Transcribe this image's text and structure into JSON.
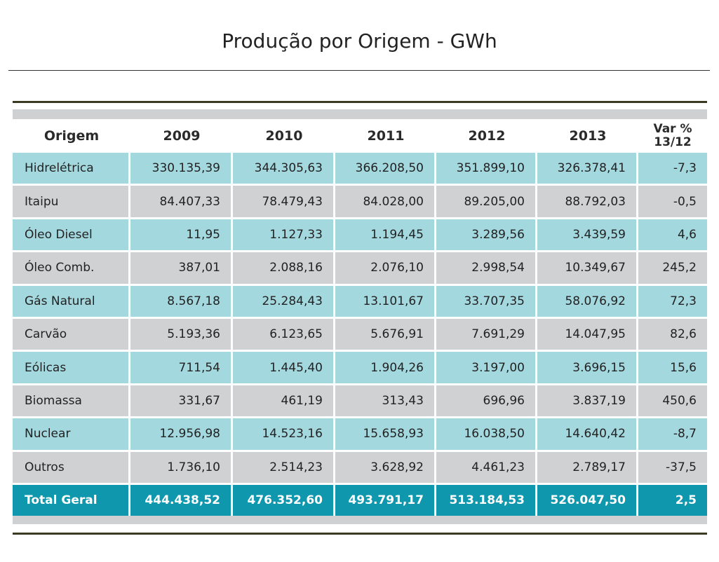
{
  "title": "Produção por Origem - GWh",
  "table": {
    "headers": [
      "Origem",
      "2009",
      "2010",
      "2011",
      "2012",
      "2013",
      "Var %",
      "13/12"
    ],
    "rows": [
      {
        "name": "Hidrelétrica",
        "values": [
          "330.135,39",
          "344.305,63",
          "366.208,50",
          "351.899,10",
          "326.378,41",
          "-7,3"
        ]
      },
      {
        "name": "Itaipu",
        "values": [
          "84.407,33",
          "78.479,43",
          "84.028,00",
          "89.205,00",
          "88.792,03",
          "-0,5"
        ]
      },
      {
        "name": "Óleo Diesel",
        "values": [
          "11,95",
          "1.127,33",
          "1.194,45",
          "3.289,56",
          "3.439,59",
          "4,6"
        ]
      },
      {
        "name": "Óleo Comb.",
        "values": [
          "387,01",
          "2.088,16",
          "2.076,10",
          "2.998,54",
          "10.349,67",
          "245,2"
        ]
      },
      {
        "name": "Gás Natural",
        "values": [
          "8.567,18",
          "25.284,43",
          "13.101,67",
          "33.707,35",
          "58.076,92",
          "72,3"
        ]
      },
      {
        "name": "Carvão",
        "values": [
          "5.193,36",
          "6.123,65",
          "5.676,91",
          "7.691,29",
          "14.047,95",
          "82,6"
        ]
      },
      {
        "name": "Eólicas",
        "values": [
          "711,54",
          "1.445,40",
          "1.904,26",
          "3.197,00",
          "3.696,15",
          "15,6"
        ]
      },
      {
        "name": "Biomassa",
        "values": [
          "331,67",
          "461,19",
          "313,43",
          "696,96",
          "3.837,19",
          "450,6"
        ]
      },
      {
        "name": "Nuclear",
        "values": [
          "12.956,98",
          "14.523,16",
          "15.658,93",
          "16.038,50",
          "14.640,42",
          "-8,7"
        ]
      },
      {
        "name": "Outros",
        "values": [
          "1.736,10",
          "2.514,23",
          "3.628,92",
          "4.461,23",
          "2.789,17",
          "-37,5"
        ]
      }
    ],
    "total": {
      "name": "Total Geral",
      "values": [
        "444.438,52",
        "476.352,60",
        "493.791,17",
        "513.184,53",
        "526.047,50",
        "2,5"
      ]
    }
  },
  "colors": {
    "row_blue": "#a4d8df",
    "row_gray": "#d0d1d3",
    "total": "#0f97ad"
  }
}
